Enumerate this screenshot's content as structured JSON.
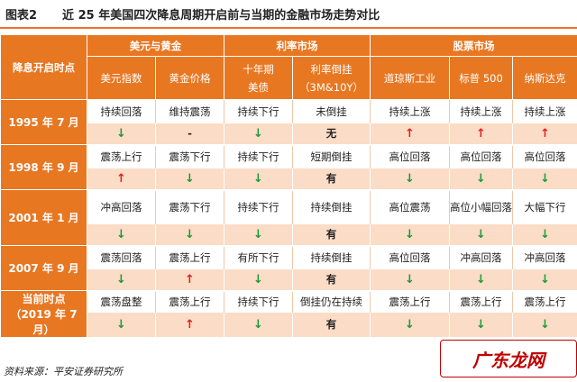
{
  "title": {
    "fig": "图表2",
    "text": "近 25 年美国四次降息周期开启前与当期的金融市场走势对比"
  },
  "groups": [
    "美元与黄金",
    "利率市场",
    "股票市场"
  ],
  "row_header": "降息开启时点",
  "columns": [
    "美元指数",
    "黄金价格",
    "十年期美债",
    "利率倒挂（3M&10Y）",
    "道琼斯工业",
    "标普 500",
    "纳斯达克"
  ],
  "col_rate_line1": "十年期",
  "col_rate_line2": "美债",
  "col_inv_line1": "利率倒挂",
  "col_inv_line2": "（3M&10Y）",
  "colors": {
    "accent": "#e87722",
    "up": "#e02020",
    "down": "#1a9a3a",
    "band": "#fbdcc6"
  },
  "periods": [
    {
      "label": "1995 年 7 月",
      "before": [
        "持续回落",
        "维持震荡",
        "持续下行",
        "未倒挂",
        "持续上涨",
        "持续上涨",
        "持续上涨"
      ],
      "after": [
        "↓",
        "-",
        "↓",
        "无",
        "↑",
        "↑",
        "↑"
      ]
    },
    {
      "label": "1998 年 9 月",
      "before": [
        "震荡上行",
        "震荡下行",
        "持续下行",
        "短期倒挂",
        "高位回落",
        "高位回落",
        "高位回落"
      ],
      "after": [
        "↑",
        "↓",
        "↓",
        "有",
        "↓",
        "↓",
        "↓"
      ]
    },
    {
      "label": "2001 年 1 月",
      "before": [
        "冲高回落",
        "震荡下行",
        "持续下行",
        "持续倒挂",
        "高位震荡",
        "高位小幅回落",
        "大幅下行"
      ],
      "after": [
        "↓",
        "↓",
        "↓",
        "有",
        "↓",
        "↓",
        "↓"
      ]
    },
    {
      "label": "2007 年 9 月",
      "before": [
        "震荡回落",
        "震荡上行",
        "有所下行",
        "持续倒挂",
        "高位回落",
        "冲高回落",
        "冲高回落"
      ],
      "after": [
        "↓",
        "↑",
        "↓",
        "有",
        "↓",
        "↓",
        "↓"
      ]
    },
    {
      "label_line1": "当前时点",
      "label_line2": "（2019 年 7 月）",
      "before": [
        "震荡盘整",
        "震荡上行",
        "持续下行",
        "倒挂仍在持续",
        "震荡上行",
        "震荡上行",
        "震荡上行"
      ],
      "after": [
        "↓",
        "↑",
        "↓",
        "有",
        "↓",
        "↓",
        "↓"
      ]
    }
  ],
  "source": "资料来源：平安证券研究所",
  "watermark": "广东龙网"
}
